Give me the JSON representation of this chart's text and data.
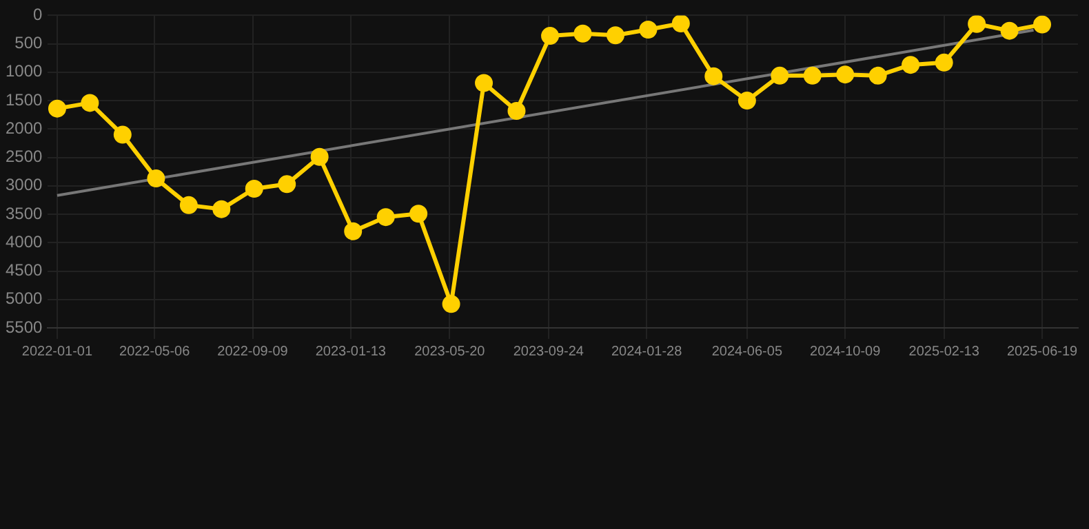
{
  "chart_data": {
    "type": "line",
    "x": [
      "2022-01-01",
      "2022-02-12",
      "2022-03-26",
      "2022-05-08",
      "2022-06-19",
      "2022-07-31",
      "2022-09-11",
      "2022-10-23",
      "2022-12-04",
      "2023-01-16",
      "2023-02-27",
      "2023-04-10",
      "2023-05-22",
      "2023-07-03",
      "2023-08-14",
      "2023-09-26",
      "2023-11-07",
      "2023-12-19",
      "2024-01-30",
      "2024-03-12",
      "2024-04-23",
      "2024-06-05",
      "2024-07-17",
      "2024-08-28",
      "2024-10-09",
      "2024-11-20",
      "2025-01-01",
      "2025-02-13",
      "2025-03-27",
      "2025-05-08",
      "2025-06-19"
    ],
    "series": [
      {
        "color": "#ffd000",
        "marker": "circle",
        "values": [
          1640,
          1540,
          2100,
          2870,
          3340,
          3410,
          3050,
          2970,
          2490,
          3800,
          3550,
          3490,
          5080,
          1190,
          1680,
          360,
          320,
          350,
          250,
          140,
          1070,
          1500,
          1060,
          1060,
          1040,
          1060,
          870,
          830,
          150,
          270,
          160
        ]
      },
      {
        "type": "line",
        "color": "#777777",
        "marker": "none",
        "x": [
          "2022-01-01",
          "2025-06-08"
        ],
        "values": [
          3170,
          260
        ]
      }
    ],
    "xlim": [
      "2021-12-20",
      "2025-08-04"
    ],
    "xticks": [
      "2022-01-01",
      "2022-05-06",
      "2022-09-09",
      "2023-01-13",
      "2023-05-20",
      "2023-09-24",
      "2024-01-28",
      "2024-06-05",
      "2024-10-09",
      "2025-02-13",
      "2025-06-19"
    ],
    "ylim": [
      5500,
      0
    ],
    "yticks": [
      0,
      500,
      1000,
      1500,
      2000,
      2500,
      3000,
      3500,
      4000,
      4500,
      5000,
      5500
    ],
    "grid": true,
    "legend": false
  }
}
